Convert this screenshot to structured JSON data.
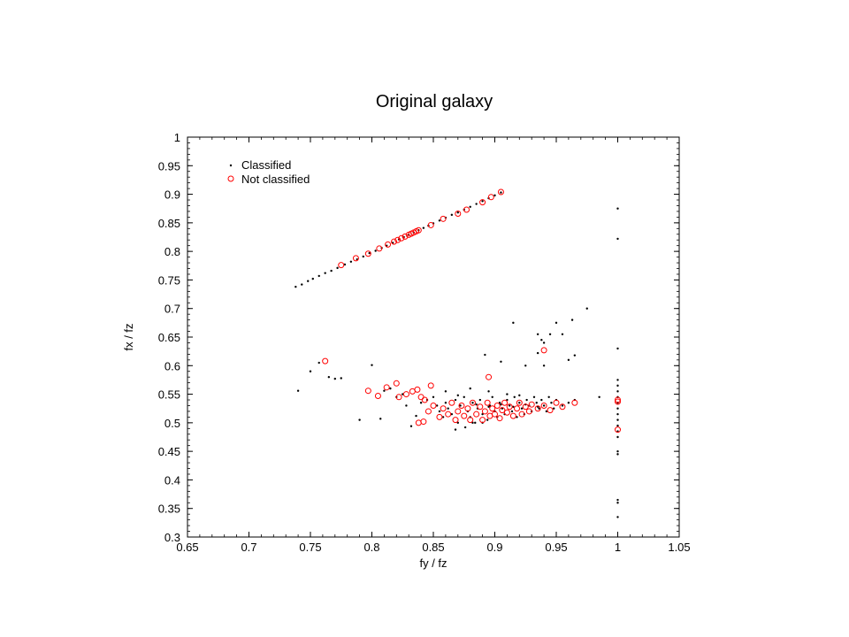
{
  "chart_data": {
    "type": "scatter",
    "title": "Original galaxy",
    "xlabel": "fy / fz",
    "ylabel": "fx / fz",
    "xlim": [
      0.65,
      1.05
    ],
    "ylim": [
      0.3,
      1.0
    ],
    "xticks": [
      "0.65",
      "0.7",
      "0.75",
      "0.8",
      "0.85",
      "0.9",
      "0.95",
      "1",
      "1.05"
    ],
    "yticks": [
      "0.3",
      "0.35",
      "0.4",
      "0.45",
      "0.5",
      "0.55",
      "0.6",
      "0.65",
      "0.7",
      "0.75",
      "0.8",
      "0.85",
      "0.9",
      "0.95",
      "1"
    ],
    "grid": false,
    "legend_position": "top-left",
    "colors": {
      "classified": "#000000",
      "not_classified": "#ff0000"
    },
    "series": [
      {
        "name": "Classified",
        "marker": "dot",
        "points": [
          [
            0.738,
            0.738
          ],
          [
            0.743,
            0.742
          ],
          [
            0.748,
            0.748
          ],
          [
            0.752,
            0.752
          ],
          [
            0.757,
            0.757
          ],
          [
            0.762,
            0.762
          ],
          [
            0.767,
            0.766
          ],
          [
            0.772,
            0.771
          ],
          [
            0.778,
            0.777
          ],
          [
            0.783,
            0.782
          ],
          [
            0.788,
            0.786
          ],
          [
            0.793,
            0.791
          ],
          [
            0.798,
            0.797
          ],
          [
            0.803,
            0.801
          ],
          [
            0.808,
            0.806
          ],
          [
            0.812,
            0.81
          ],
          [
            0.817,
            0.815
          ],
          [
            0.822,
            0.821
          ],
          [
            0.826,
            0.825
          ],
          [
            0.83,
            0.829
          ],
          [
            0.834,
            0.833
          ],
          [
            0.838,
            0.837
          ],
          [
            0.842,
            0.841
          ],
          [
            0.846,
            0.845
          ],
          [
            0.85,
            0.849
          ],
          [
            0.855,
            0.854
          ],
          [
            0.86,
            0.859
          ],
          [
            0.865,
            0.864
          ],
          [
            0.87,
            0.868
          ],
          [
            0.875,
            0.873
          ],
          [
            0.88,
            0.878
          ],
          [
            0.885,
            0.883
          ],
          [
            0.89,
            0.888
          ],
          [
            0.895,
            0.893
          ],
          [
            0.9,
            0.898
          ],
          [
            0.905,
            0.903
          ],
          [
            1.0,
            0.875
          ],
          [
            1.0,
            0.822
          ],
          [
            1.0,
            0.63
          ],
          [
            1.0,
            0.575
          ],
          [
            1.0,
            0.565
          ],
          [
            1.0,
            0.555
          ],
          [
            1.0,
            0.545
          ],
          [
            1.0,
            0.535
          ],
          [
            1.0,
            0.525
          ],
          [
            1.0,
            0.515
          ],
          [
            1.0,
            0.505
          ],
          [
            1.0,
            0.495
          ],
          [
            1.0,
            0.485
          ],
          [
            1.0,
            0.475
          ],
          [
            1.0,
            0.45
          ],
          [
            1.0,
            0.445
          ],
          [
            1.0,
            0.365
          ],
          [
            1.0,
            0.36
          ],
          [
            1.0,
            0.335
          ],
          [
            0.74,
            0.556
          ],
          [
            0.75,
            0.59
          ],
          [
            0.757,
            0.605
          ],
          [
            0.765,
            0.58
          ],
          [
            0.77,
            0.577
          ],
          [
            0.775,
            0.578
          ],
          [
            0.79,
            0.505
          ],
          [
            0.8,
            0.601
          ],
          [
            0.807,
            0.507
          ],
          [
            0.81,
            0.556
          ],
          [
            0.815,
            0.56
          ],
          [
            0.82,
            0.545
          ],
          [
            0.825,
            0.55
          ],
          [
            0.828,
            0.53
          ],
          [
            0.832,
            0.494
          ],
          [
            0.836,
            0.512
          ],
          [
            0.84,
            0.535
          ],
          [
            0.845,
            0.54
          ],
          [
            0.85,
            0.545
          ],
          [
            0.853,
            0.53
          ],
          [
            0.855,
            0.52
          ],
          [
            0.858,
            0.51
          ],
          [
            0.86,
            0.535
          ],
          [
            0.862,
            0.525
          ],
          [
            0.865,
            0.515
          ],
          [
            0.868,
            0.54
          ],
          [
            0.87,
            0.5
          ],
          [
            0.872,
            0.53
          ],
          [
            0.875,
            0.545
          ],
          [
            0.878,
            0.52
          ],
          [
            0.88,
            0.51
          ],
          [
            0.882,
            0.535
          ],
          [
            0.884,
            0.5
          ],
          [
            0.886,
            0.525
          ],
          [
            0.888,
            0.54
          ],
          [
            0.89,
            0.515
          ],
          [
            0.892,
            0.619
          ],
          [
            0.894,
            0.505
          ],
          [
            0.896,
            0.53
          ],
          [
            0.898,
            0.545
          ],
          [
            0.9,
            0.52
          ],
          [
            0.902,
            0.51
          ],
          [
            0.904,
            0.535
          ],
          [
            0.906,
            0.525
          ],
          [
            0.908,
            0.515
          ],
          [
            0.91,
            0.54
          ],
          [
            0.912,
            0.53
          ],
          [
            0.914,
            0.52
          ],
          [
            0.916,
            0.545
          ],
          [
            0.918,
            0.51
          ],
          [
            0.92,
            0.535
          ],
          [
            0.922,
            0.525
          ],
          [
            0.924,
            0.515
          ],
          [
            0.926,
            0.54
          ],
          [
            0.928,
            0.53
          ],
          [
            0.93,
            0.52
          ],
          [
            0.932,
            0.545
          ],
          [
            0.934,
            0.535
          ],
          [
            0.936,
            0.525
          ],
          [
            0.938,
            0.54
          ],
          [
            0.94,
            0.53
          ],
          [
            0.942,
            0.52
          ],
          [
            0.944,
            0.545
          ],
          [
            0.946,
            0.535
          ],
          [
            0.948,
            0.525
          ],
          [
            0.95,
            0.54
          ],
          [
            0.955,
            0.53
          ],
          [
            0.96,
            0.535
          ],
          [
            0.965,
            0.54
          ],
          [
            0.985,
            0.545
          ],
          [
            0.868,
            0.488
          ],
          [
            0.876,
            0.492
          ],
          [
            0.882,
            0.5
          ],
          [
            0.89,
            0.5
          ],
          [
            0.885,
            0.532
          ],
          [
            0.895,
            0.528
          ],
          [
            0.905,
            0.532
          ],
          [
            0.915,
            0.528
          ],
          [
            0.925,
            0.532
          ],
          [
            0.935,
            0.528
          ],
          [
            0.905,
            0.607
          ],
          [
            0.915,
            0.675
          ],
          [
            0.925,
            0.6
          ],
          [
            0.935,
            0.622
          ],
          [
            0.94,
            0.6
          ],
          [
            0.945,
            0.655
          ],
          [
            0.95,
            0.675
          ],
          [
            0.955,
            0.655
          ],
          [
            0.96,
            0.61
          ],
          [
            0.963,
            0.68
          ],
          [
            0.975,
            0.7
          ],
          [
            0.965,
            0.618
          ],
          [
            0.935,
            0.655
          ],
          [
            0.938,
            0.645
          ],
          [
            0.94,
            0.64
          ],
          [
            0.86,
            0.555
          ],
          [
            0.87,
            0.548
          ],
          [
            0.88,
            0.56
          ],
          [
            0.895,
            0.555
          ],
          [
            0.91,
            0.55
          ],
          [
            0.92,
            0.548
          ]
        ]
      },
      {
        "name": "Not classified",
        "marker": "circle",
        "points": [
          [
            0.775,
            0.776
          ],
          [
            0.787,
            0.788
          ],
          [
            0.797,
            0.796
          ],
          [
            0.806,
            0.805
          ],
          [
            0.813,
            0.812
          ],
          [
            0.818,
            0.817
          ],
          [
            0.821,
            0.82
          ],
          [
            0.824,
            0.823
          ],
          [
            0.827,
            0.826
          ],
          [
            0.83,
            0.829
          ],
          [
            0.832,
            0.831
          ],
          [
            0.834,
            0.833
          ],
          [
            0.836,
            0.835
          ],
          [
            0.838,
            0.837
          ],
          [
            0.848,
            0.846
          ],
          [
            0.858,
            0.857
          ],
          [
            0.87,
            0.866
          ],
          [
            0.877,
            0.873
          ],
          [
            0.89,
            0.886
          ],
          [
            0.897,
            0.895
          ],
          [
            0.905,
            0.904
          ],
          [
            0.762,
            0.608
          ],
          [
            0.797,
            0.556
          ],
          [
            0.805,
            0.547
          ],
          [
            0.812,
            0.562
          ],
          [
            0.82,
            0.569
          ],
          [
            0.822,
            0.545
          ],
          [
            0.828,
            0.55
          ],
          [
            0.833,
            0.555
          ],
          [
            0.837,
            0.558
          ],
          [
            0.84,
            0.545
          ],
          [
            0.843,
            0.54
          ],
          [
            0.848,
            0.565
          ],
          [
            0.838,
            0.5
          ],
          [
            0.842,
            0.502
          ],
          [
            0.846,
            0.52
          ],
          [
            0.85,
            0.53
          ],
          [
            0.855,
            0.51
          ],
          [
            0.858,
            0.525
          ],
          [
            0.862,
            0.515
          ],
          [
            0.865,
            0.535
          ],
          [
            0.868,
            0.505
          ],
          [
            0.87,
            0.52
          ],
          [
            0.873,
            0.53
          ],
          [
            0.875,
            0.512
          ],
          [
            0.878,
            0.525
          ],
          [
            0.88,
            0.505
          ],
          [
            0.882,
            0.535
          ],
          [
            0.885,
            0.515
          ],
          [
            0.888,
            0.528
          ],
          [
            0.89,
            0.505
          ],
          [
            0.892,
            0.52
          ],
          [
            0.894,
            0.535
          ],
          [
            0.896,
            0.512
          ],
          [
            0.898,
            0.525
          ],
          [
            0.9,
            0.515
          ],
          [
            0.902,
            0.53
          ],
          [
            0.904,
            0.508
          ],
          [
            0.906,
            0.522
          ],
          [
            0.908,
            0.535
          ],
          [
            0.91,
            0.518
          ],
          [
            0.912,
            0.528
          ],
          [
            0.915,
            0.512
          ],
          [
            0.918,
            0.525
          ],
          [
            0.92,
            0.535
          ],
          [
            0.922,
            0.515
          ],
          [
            0.925,
            0.528
          ],
          [
            0.928,
            0.52
          ],
          [
            0.93,
            0.532
          ],
          [
            0.935,
            0.525
          ],
          [
            0.94,
            0.53
          ],
          [
            0.945,
            0.522
          ],
          [
            0.95,
            0.535
          ],
          [
            0.955,
            0.528
          ],
          [
            0.965,
            0.535
          ],
          [
            0.895,
            0.58
          ],
          [
            0.94,
            0.627
          ],
          [
            1.0,
            0.54
          ],
          [
            1.0,
            0.537
          ],
          [
            1.0,
            0.488
          ]
        ]
      }
    ]
  }
}
